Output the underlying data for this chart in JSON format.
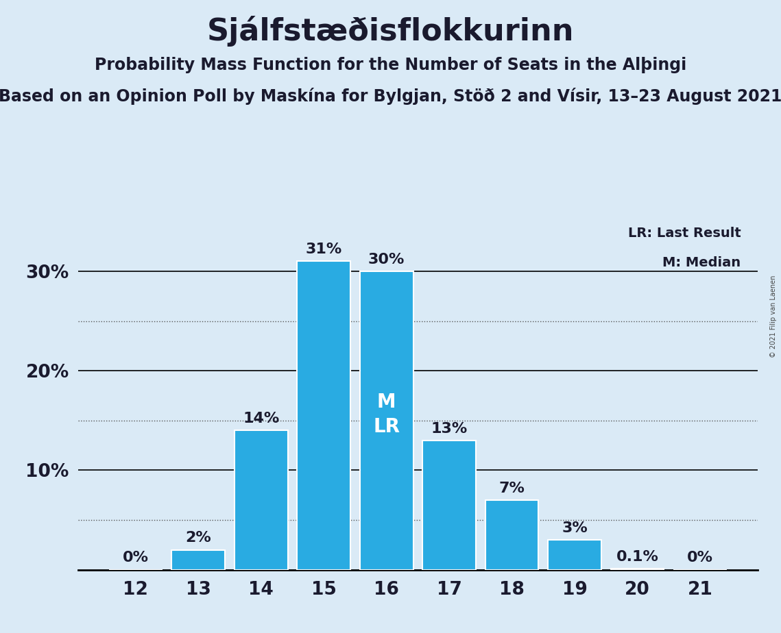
{
  "title": "Sjálfstæðisflokkurinn",
  "subtitle1": "Probability Mass Function for the Number of Seats in the Alþingi",
  "subtitle2": "Based on an Opinion Poll by Maskína for Bylgjan, Stöð 2 and Vísir, 13–23 August 2021",
  "copyright": "© 2021 Filip van Laenen",
  "categories": [
    12,
    13,
    14,
    15,
    16,
    17,
    18,
    19,
    20,
    21
  ],
  "values": [
    0.0,
    2.0,
    14.0,
    31.0,
    30.0,
    13.0,
    7.0,
    3.0,
    0.1,
    0.0
  ],
  "bar_color": "#29ABE2",
  "background_color": "#DAEAF6",
  "label_color": "#1a1a2e",
  "bar_labels": [
    "0%",
    "2%",
    "14%",
    "31%",
    "30%",
    "13%",
    "7%",
    "3%",
    "0.1%",
    "0%"
  ],
  "median_seat": 16,
  "last_result_seat": 16,
  "legend_lr": "LR: Last Result",
  "legend_m": "M: Median",
  "ylim": [
    0,
    35
  ],
  "dotted_yticks": [
    5,
    15,
    25
  ],
  "solid_yticks": [
    10,
    20,
    30
  ],
  "title_fontsize": 32,
  "subtitle1_fontsize": 17,
  "subtitle2_fontsize": 17,
  "label_fontsize": 16,
  "axis_fontsize": 19,
  "inside_label_fontsize": 20
}
